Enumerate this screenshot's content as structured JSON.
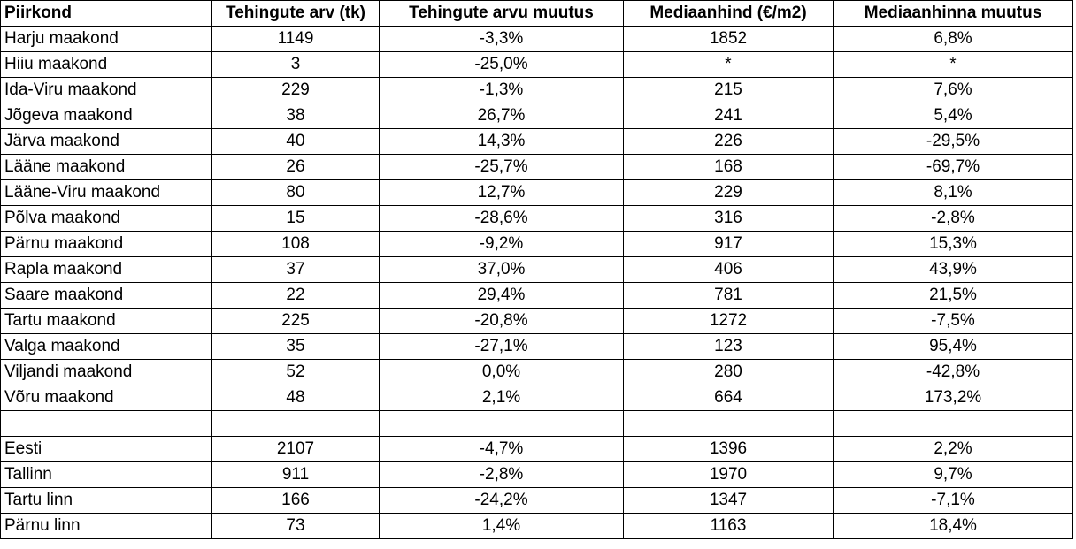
{
  "table": {
    "headers": [
      "Piirkond",
      "Tehingute arv (tk)",
      "Tehingute arvu muutus",
      "Mediaanhind (€/m2)",
      "Mediaanhinna muutus"
    ],
    "rows": [
      [
        "Harju maakond",
        "1149",
        "-3,3%",
        "1852",
        "6,8%"
      ],
      [
        "Hiiu maakond",
        "3",
        "-25,0%",
        "*",
        "*"
      ],
      [
        "Ida-Viru maakond",
        "229",
        "-1,3%",
        "215",
        "7,6%"
      ],
      [
        "Jõgeva maakond",
        "38",
        "26,7%",
        "241",
        "5,4%"
      ],
      [
        "Järva maakond",
        "40",
        "14,3%",
        "226",
        "-29,5%"
      ],
      [
        "Lääne maakond",
        "26",
        "-25,7%",
        "168",
        "-69,7%"
      ],
      [
        "Lääne-Viru maakond",
        "80",
        "12,7%",
        "229",
        "8,1%"
      ],
      [
        "Põlva maakond",
        "15",
        "-28,6%",
        "316",
        "-2,8%"
      ],
      [
        "Pärnu maakond",
        "108",
        "-9,2%",
        "917",
        "15,3%"
      ],
      [
        "Rapla maakond",
        "37",
        "37,0%",
        "406",
        "43,9%"
      ],
      [
        "Saare maakond",
        "22",
        "29,4%",
        "781",
        "21,5%"
      ],
      [
        "Tartu maakond",
        "225",
        "-20,8%",
        "1272",
        "-7,5%"
      ],
      [
        "Valga maakond",
        "35",
        "-27,1%",
        "123",
        "95,4%"
      ],
      [
        "Viljandi maakond",
        "52",
        "0,0%",
        "280",
        "-42,8%"
      ],
      [
        "Võru maakond",
        "48",
        "2,1%",
        "664",
        "173,2%"
      ],
      [
        "",
        "",
        "",
        "",
        ""
      ],
      [
        "Eesti",
        "2107",
        "-4,7%",
        "1396",
        "2,2%"
      ],
      [
        "Tallinn",
        "911",
        "-2,8%",
        "1970",
        "9,7%"
      ],
      [
        "Tartu linn",
        "166",
        "-24,2%",
        "1347",
        "-7,1%"
      ],
      [
        "Pärnu linn",
        "73",
        "1,4%",
        "1163",
        "18,4%"
      ]
    ]
  }
}
